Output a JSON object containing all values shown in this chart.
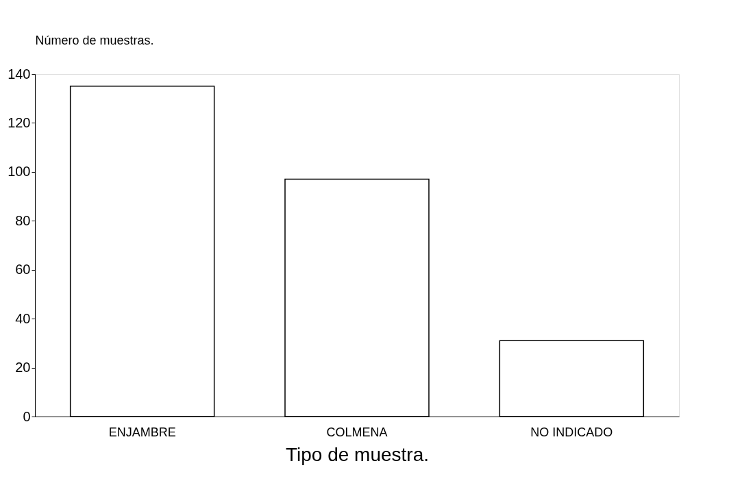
{
  "chart_data": {
    "type": "bar",
    "ylabel": "Número de muestras.",
    "xlabel": "Tipo de muestra.",
    "categories": [
      "ENJAMBRE",
      "COLMENA",
      "NO INDICADO"
    ],
    "values": [
      135,
      97,
      31
    ],
    "color": "#ffffff",
    "ylim": [
      0,
      140
    ],
    "yticks": [
      0,
      20,
      40,
      60,
      80,
      100,
      120,
      140
    ],
    "grid": false
  }
}
